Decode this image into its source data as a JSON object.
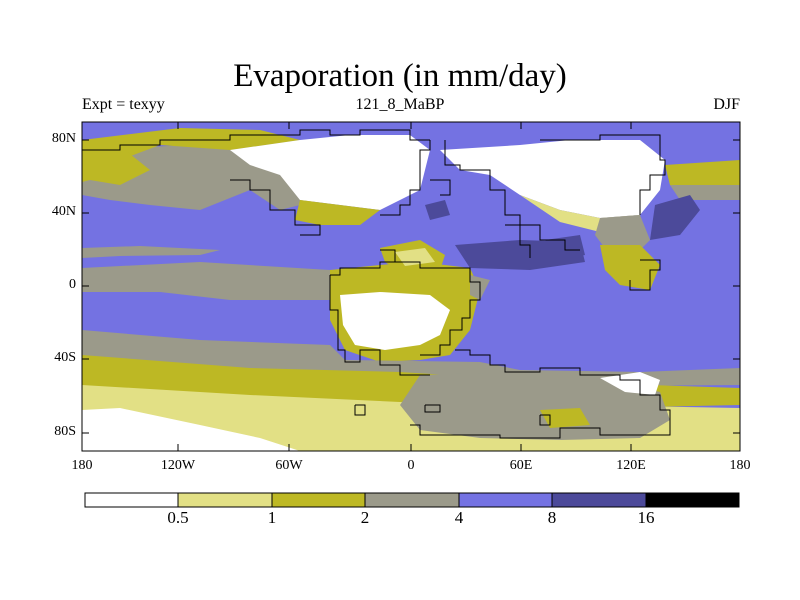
{
  "title": "Evaporation (in mm/day)",
  "subtitle_left": "Expt = texyy",
  "subtitle_center": "121_8_MaBP",
  "subtitle_right": "DJF",
  "lat_labels": [
    "80N",
    "40N",
    "0",
    "40S",
    "80S"
  ],
  "lon_labels": [
    "180",
    "120W",
    "60W",
    "0",
    "60E",
    "120E",
    "180"
  ],
  "colorbar": {
    "labels": [
      "0.5",
      "1",
      "2",
      "4",
      "8",
      "16"
    ],
    "colors": [
      "#ffffff",
      "#e2e085",
      "#bdb824",
      "#9b9a8a",
      "#7472e2",
      "#4c4a9a",
      "#000000"
    ]
  }
}
